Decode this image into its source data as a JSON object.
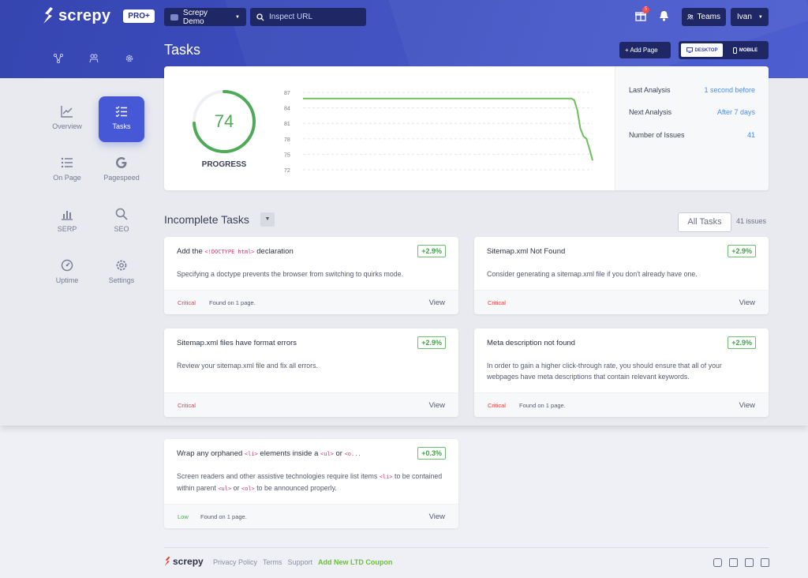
{
  "brand": {
    "name": "screpy",
    "plan": "PRO+"
  },
  "header": {
    "project": "Screpy Demo",
    "search_placeholder": "Inspect URL",
    "gift_badge": "5",
    "teams_label": "Teams",
    "user_label": "Ivan"
  },
  "page": {
    "title": "Tasks",
    "add_page_label": "+ Add Page",
    "view_desktop": "DESKTOP",
    "view_mobile": "MOBILE"
  },
  "nav": [
    {
      "label": "Overview",
      "icon": "chart-line-icon"
    },
    {
      "label": "Tasks",
      "icon": "tasks-icon",
      "active": true
    },
    {
      "label": "On Page",
      "icon": "list-icon"
    },
    {
      "label": "Pagespeed",
      "icon": "google-icon"
    },
    {
      "label": "SERP",
      "icon": "bar-chart-icon"
    },
    {
      "label": "SEO",
      "icon": "search-icon"
    },
    {
      "label": "Uptime",
      "icon": "gauge-icon"
    },
    {
      "label": "Settings",
      "icon": "gear-icon"
    }
  ],
  "progress": {
    "value": "74",
    "label": "PROGRESS",
    "fraction": 0.74
  },
  "chart_data": {
    "type": "line",
    "title": "",
    "xlabel": "",
    "ylabel": "",
    "ylim": [
      72,
      87
    ],
    "yticks": [
      "87",
      "84",
      "81",
      "78",
      "75",
      "72"
    ],
    "series": [
      {
        "values": [
          85.8,
          85.8,
          85.8,
          85.8,
          85.8,
          85.8,
          85.8,
          85.8,
          85.8,
          85.8,
          85.8,
          85.8,
          85.8,
          85.8,
          85.8,
          85.8,
          85.8,
          85.8,
          85.8,
          85.8,
          85.8,
          85.8,
          85.8,
          85.8,
          85.8,
          85.8,
          85.8,
          85.8,
          85.8,
          85.8,
          85.8,
          85.8,
          85.8,
          85.8,
          85.8,
          85.8,
          85.8,
          85.8,
          85.8,
          85.8,
          85.8,
          85.8,
          85.8,
          85.8,
          85.8,
          85.8,
          85.8,
          85.8,
          85.8,
          85.8,
          85.8,
          85.8,
          85.8,
          85.8,
          85.8,
          85.8,
          85.8,
          85.8,
          85.8,
          85.8,
          85.8,
          85.8,
          85.8,
          85.8,
          85.8,
          85.8,
          85.8,
          85.8,
          85.8,
          85.8,
          85.8,
          85.8,
          85.8,
          85.8,
          85.8,
          85.8,
          85.8,
          85.8,
          85.8,
          85.8,
          85.8,
          85.8,
          85.8,
          85.8,
          85.8,
          85.8,
          85.8,
          85.8,
          85.8,
          85.5,
          83.5,
          80.0,
          78.5,
          78.0,
          76.0,
          73.8
        ],
        "color": "#6cbf5b"
      }
    ],
    "grid": true
  },
  "analysis": [
    {
      "label": "Last Analysis",
      "value": "1 second before"
    },
    {
      "label": "Next Analysis",
      "value": "After 7 days"
    },
    {
      "label": "Number of Issues",
      "value": "41"
    }
  ],
  "section": {
    "title": "Incomplete Tasks",
    "all_tasks_label": "All Tasks",
    "issues_label": "41 issues"
  },
  "tasks": [
    {
      "title_pre": "Add the ",
      "title_code": "<!DOCTYPE html>",
      "title_post": " declaration",
      "pct": "+2.9%",
      "desc": "Specifying a doctype prevents the browser from switching to quirks mode.",
      "severity": "Critical",
      "found": "Found on 1 page.",
      "view": "View"
    },
    {
      "title": "Sitemap.xml Not Found",
      "pct": "+2.9%",
      "desc": "Consider generating a sitemap.xml file if you don't already have one.",
      "severity": "Critical",
      "found": "",
      "view": "View"
    },
    {
      "title": "Sitemap.xml files have format errors",
      "pct": "+2.9%",
      "desc": "Review your sitemap.xml file and fix all errors.",
      "severity": "Critical",
      "found": "",
      "view": "View"
    },
    {
      "title": "Meta description not found",
      "pct": "+2.9%",
      "desc": "In order to gain a higher click-through rate, you should ensure that all of your webpages have meta descriptions that contain relevant keywords.",
      "severity": "Critical",
      "found": "Found on 1 page.",
      "view": "View"
    },
    {
      "title_pre": "Wrap any orphaned ",
      "title_code": "<li>",
      "title_mid": " elements inside a ",
      "title_code2": "<ul>",
      "title_mid2": " or ",
      "title_code3": "<o...",
      "pct": "+0.3%",
      "desc_a": "Screen readers and other assistive technologies require list items ",
      "desc_code": "<li>",
      "desc_b": " to be contained within parent ",
      "desc_code2": "<ul>",
      "desc_c": " or ",
      "desc_code3": "<ol>",
      "desc_d": " to be announced properly.",
      "severity": "Low",
      "found": "Found on 1 page.",
      "view": "View"
    }
  ],
  "footer": {
    "logo": "screpy",
    "links": [
      "Privacy Policy",
      "Terms",
      "Support"
    ],
    "coupon": "Add New LTD Coupon",
    "social": [
      "instagram-icon",
      "twitter-icon",
      "facebook-icon",
      "linkedin-icon"
    ]
  },
  "colors": {
    "primary": "#3d4fc2",
    "accent": "#4658d6",
    "success": "#42a04b",
    "danger": "#e2403f",
    "link": "#4a8df5"
  }
}
